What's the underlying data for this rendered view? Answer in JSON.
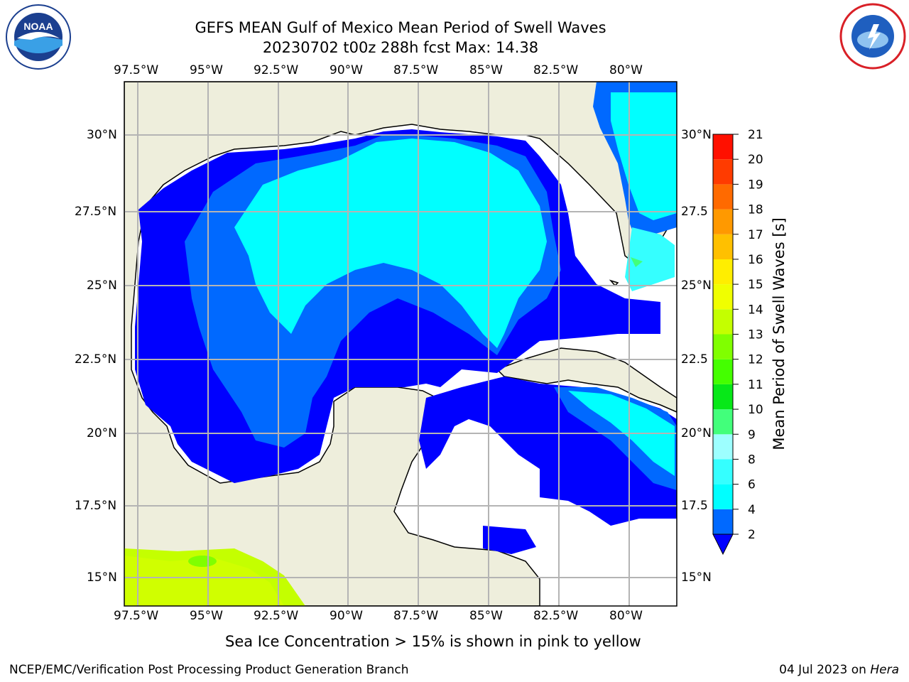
{
  "header": {
    "title_line1": "GEFS MEAN Gulf of Mexico Mean Period of Swell Waves",
    "title_line2": "20230702 t00z 288h fcst   Max: 14.38"
  },
  "logos": {
    "left": "noaa-logo",
    "right": "nws-logo"
  },
  "map": {
    "lon_labels": [
      "97.5°W",
      "95°W",
      "92.5°W",
      "90°W",
      "87.5°W",
      "85°W",
      "82.5°W",
      "80°W"
    ],
    "lat_labels_left": [
      "30°N",
      "27.5°N",
      "25°N",
      "22.5°N",
      "20°N",
      "17.5°N",
      "15°N"
    ],
    "lat_labels_right": [
      "30°N",
      "27.5",
      "25°N",
      "22.5",
      "20°N",
      "17.5",
      "15°N"
    ],
    "colors": {
      "land": "#eeeedc",
      "grid": "#b4b4b4",
      "coast": "#000000"
    }
  },
  "colorbar": {
    "label": "Mean Period of Swell Waves [s]",
    "ticks": [
      "2",
      "4",
      "6",
      "8",
      "9",
      "10",
      "11",
      "12",
      "13",
      "14",
      "15",
      "16",
      "17",
      "18",
      "19",
      "20",
      "21"
    ],
    "colors": [
      "#0000ff",
      "#0069ff",
      "#00ffff",
      "#35ffff",
      "#9dffff",
      "#42ff7b",
      "#07e818",
      "#44ff00",
      "#80ff00",
      "#c4ff00",
      "#f0ff00",
      "#ffee00",
      "#ffc000",
      "#ff9900",
      "#ff6a00",
      "#ff3b00",
      "#ff1000"
    ]
  },
  "footer": {
    "ice_note": "Sea Ice Concentration > 15% is shown in pink to yellow",
    "left": "NCEP/EMC/Verification Post Processing Product Generation Branch",
    "date": "04 Jul 2023 on ",
    "machine": "Hera"
  }
}
